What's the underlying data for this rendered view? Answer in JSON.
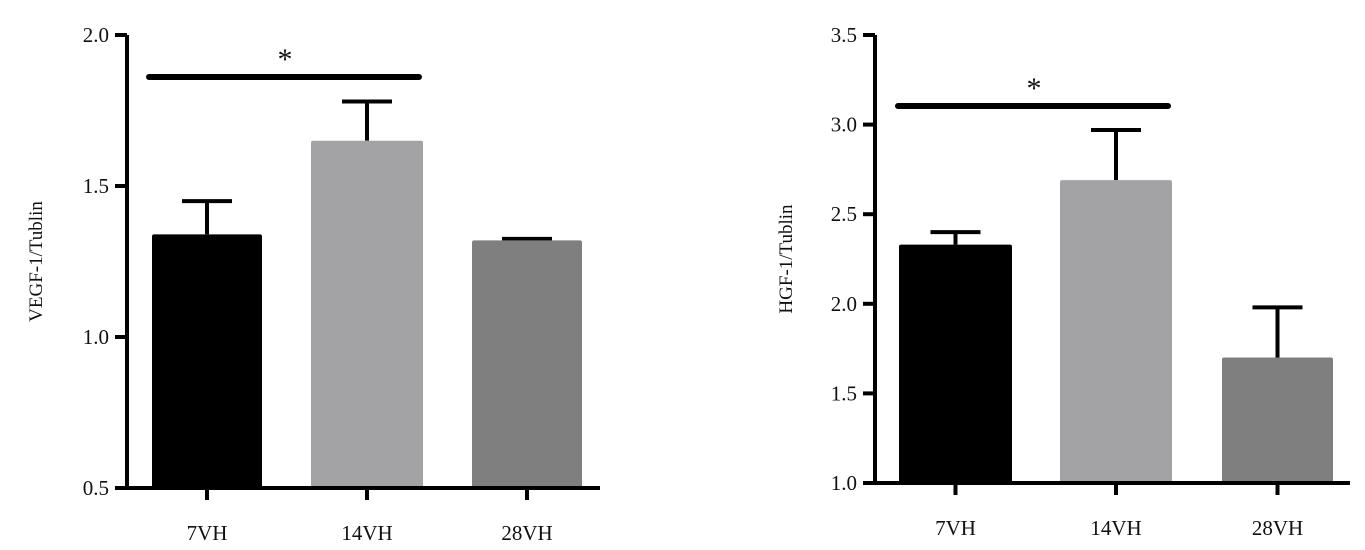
{
  "chart_data": [
    {
      "type": "bar",
      "title": "",
      "xlabel": "",
      "ylabel": "VEGF-1/Tublin",
      "ylim": [
        0.5,
        2.0
      ],
      "yticks": [
        "0.5",
        "1.0",
        "1.5",
        "2.0"
      ],
      "categories": [
        "7VH",
        "14VH",
        "28VH"
      ],
      "values": [
        1.34,
        1.65,
        1.32
      ],
      "errors": [
        0.11,
        0.13,
        0.005
      ],
      "colors": [
        "#000000",
        "#a3a3a5",
        "#7f7f7f"
      ],
      "significance": {
        "label": "*",
        "from": "7VH",
        "to": "14VH"
      },
      "grid": false
    },
    {
      "type": "bar",
      "title": "",
      "xlabel": "",
      "ylabel": "HGF-1/Tublin",
      "ylim": [
        1.0,
        3.5
      ],
      "yticks": [
        "1.0",
        "1.5",
        "2.0",
        "2.5",
        "3.0",
        "3.5"
      ],
      "categories": [
        "7VH",
        "14VH",
        "28VH"
      ],
      "values": [
        2.33,
        2.69,
        1.7
      ],
      "errors": [
        0.07,
        0.28,
        0.28
      ],
      "colors": [
        "#000000",
        "#a3a3a5",
        "#7f7f7f"
      ],
      "significance": {
        "label": "*",
        "from": "7VH",
        "to": "14VH"
      },
      "grid": false
    }
  ]
}
